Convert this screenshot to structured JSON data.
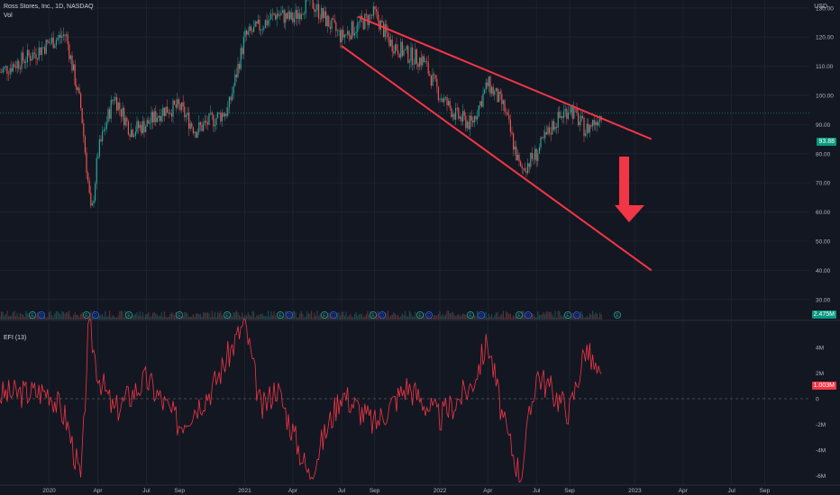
{
  "header": {
    "symbol_line": "Ross Stores, Inc., 1D, NASDAQ",
    "vol_label": "Vol",
    "efi_label": "EFI (13)",
    "currency": "USD"
  },
  "chart_data": [
    {
      "type": "candlestick",
      "title": "Ross Stores, Inc., 1D, NASDAQ",
      "ylabel": "USD",
      "ylim": [
        25,
        145
      ],
      "y_ticks": [
        "30.00",
        "40.00",
        "50.00",
        "60.00",
        "70.00",
        "80.00",
        "90.00",
        "100.00",
        "110.00",
        "120.00",
        "130.00",
        "140.00"
      ],
      "x_ticks": [
        "2020",
        "Apr",
        "Jul",
        "Sep",
        "2021",
        "Apr",
        "Jul",
        "Sep",
        "2022",
        "Apr",
        "Jul",
        "Sep",
        "2023",
        "Apr",
        "Jul",
        "Sep"
      ],
      "last_price": "93.88",
      "series": [
        {
          "x": [
            "2019-10",
            "2019-12",
            "2020-01",
            "2020-02",
            "2020-03",
            "2020-03-20",
            "2020-04",
            "2020-05",
            "2020-06",
            "2020-07",
            "2020-08",
            "2020-09",
            "2020-10",
            "2020-12",
            "2021-01",
            "2021-02",
            "2021-03",
            "2021-04",
            "2021-05",
            "2021-06",
            "2021-07",
            "2021-08",
            "2021-09",
            "2021-10",
            "2021-11",
            "2021-12",
            "2022-01",
            "2022-02",
            "2022-03",
            "2022-04",
            "2022-05",
            "2022-06",
            "2022-07",
            "2022-08",
            "2022-09",
            "2022-10",
            "2022-11"
          ],
          "y": [
            108,
            114,
            118,
            121,
            95,
            58,
            80,
            100,
            88,
            90,
            95,
            96,
            88,
            95,
            120,
            124,
            128,
            126,
            133,
            126,
            120,
            124,
            128,
            118,
            114,
            112,
            100,
            93,
            90,
            104,
            96,
            74,
            80,
            90,
            96,
            88,
            94
          ]
        }
      ],
      "annotations": [
        {
          "type": "trendline",
          "label": "upper",
          "from": [
            "2021-08",
            "127"
          ],
          "to": [
            "2023-02",
            "85"
          ],
          "color": "#f23645"
        },
        {
          "type": "trendline",
          "label": "lower",
          "from": [
            "2021-07",
            "117"
          ],
          "to": [
            "2023-02",
            "40"
          ],
          "color": "#f23645"
        },
        {
          "type": "arrow",
          "direction": "down",
          "color": "#f23645"
        }
      ],
      "event_markers": [
        "E",
        "D",
        "E",
        "D",
        "E",
        "E",
        "E",
        "E",
        "D",
        "E",
        "D",
        "E",
        "D",
        "E",
        "D",
        "E",
        "D",
        "E",
        "D",
        "E",
        "D",
        "E"
      ],
      "volume_tag": "2.475M"
    },
    {
      "type": "line",
      "title": "EFI (13)",
      "ylim": [
        -6.5,
        6
      ],
      "y_ticks": [
        "4M",
        "2M",
        "0",
        "-2M",
        "-4M",
        "-6M"
      ],
      "last_value": "1.003M",
      "series": [
        {
          "name": "EFI (13)",
          "color": "#f23645",
          "x": [
            "2019-10",
            "2020-01",
            "2020-02",
            "2020-03",
            "2020-03-15",
            "2020-04",
            "2020-05",
            "2020-07",
            "2020-09",
            "2020-11",
            "2021-01",
            "2021-02",
            "2021-03",
            "2021-05",
            "2021-07",
            "2021-09",
            "2021-11",
            "2022-01",
            "2022-03",
            "2022-04",
            "2022-05",
            "2022-06",
            "2022-07",
            "2022-09",
            "2022-10",
            "2022-11"
          ],
          "y": [
            0.3,
            0.6,
            -1.5,
            -6.5,
            6,
            2,
            -1,
            1.5,
            -2,
            0.8,
            6,
            -1,
            1,
            -6,
            0.5,
            -2,
            1,
            -1.5,
            1,
            4.5,
            -2,
            -6,
            2,
            -1,
            4,
            1
          ]
        }
      ]
    }
  ],
  "colors": {
    "background": "#131722",
    "up": "#26a69a",
    "down": "#ef5350",
    "trend": "#f23645",
    "efi": "#f23645",
    "price_tag": "#089981",
    "efi_tag": "#f23645",
    "volume_tag": "#089981"
  }
}
